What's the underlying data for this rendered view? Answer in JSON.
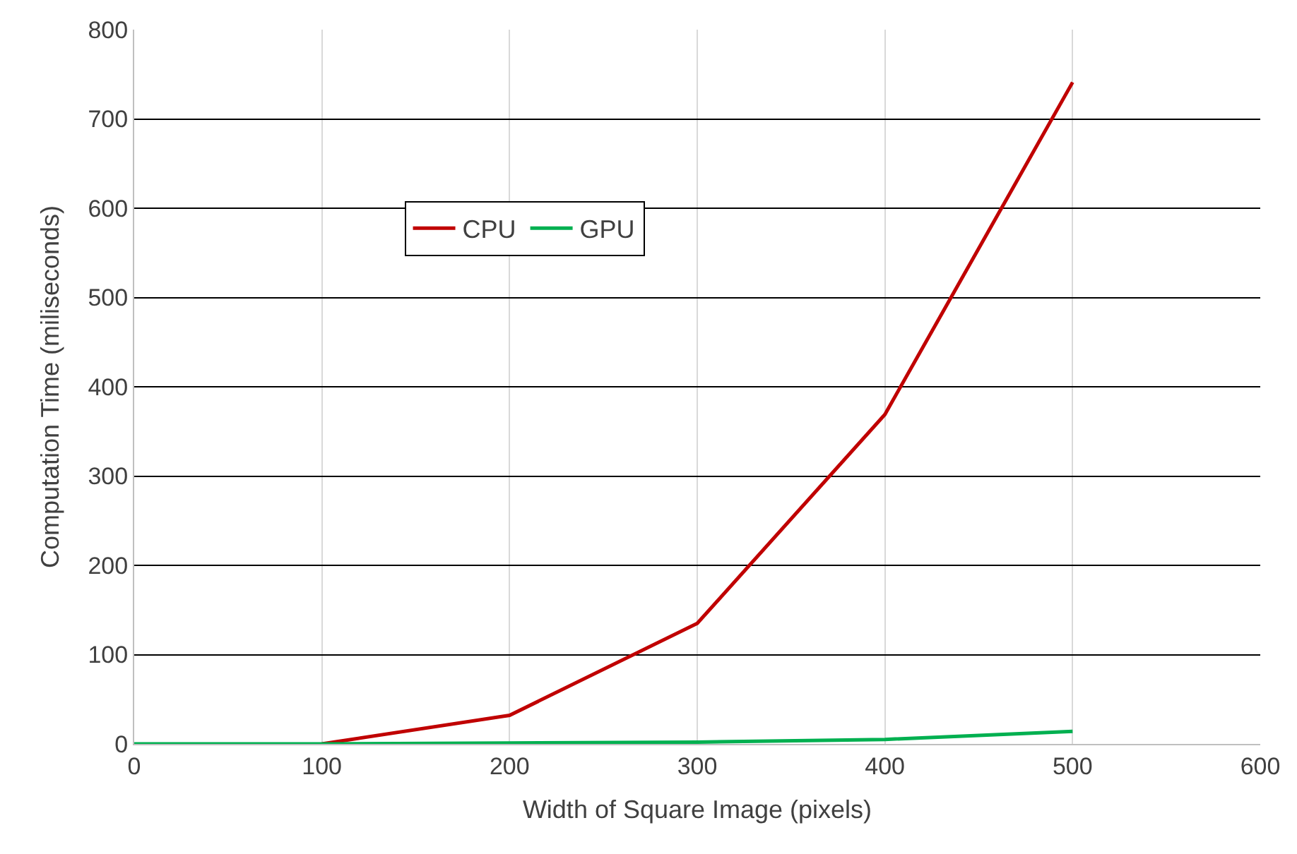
{
  "chart_data": {
    "type": "line",
    "xlabel": "Width of Square Image (pixels)",
    "ylabel": "Computation Time (miliseconds)",
    "xlim": [
      0,
      600
    ],
    "xticks": [
      0,
      100,
      200,
      300,
      400,
      500,
      600
    ],
    "ylim": [
      0,
      800
    ],
    "yticks": [
      0,
      100,
      200,
      300,
      400,
      500,
      600,
      700,
      800
    ],
    "grid": true,
    "legend": "top left",
    "marker": "none",
    "line_style": "solid",
    "series": [
      {
        "name": "CPU",
        "color": "#c00000",
        "x": [
          100,
          200,
          300,
          400,
          500
        ],
        "values": [
          0,
          32,
          135,
          369,
          741
        ]
      },
      {
        "name": "GPU",
        "color": "#00b050",
        "x": [
          0,
          100,
          200,
          300,
          400,
          500
        ],
        "values": [
          0,
          0,
          1,
          2,
          5,
          14
        ]
      }
    ]
  }
}
